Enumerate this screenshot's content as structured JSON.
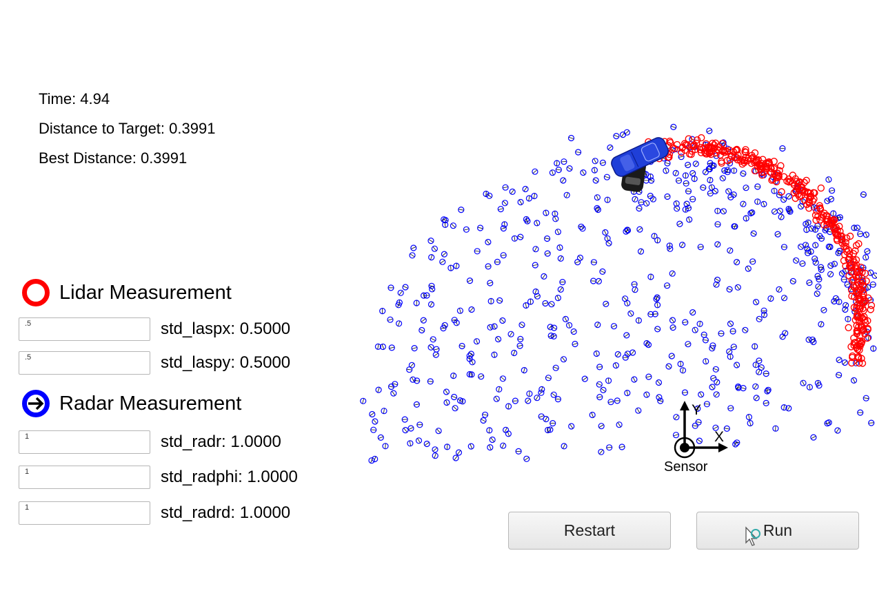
{
  "stats": {
    "time": "Time: 4.94",
    "distance": "Distance to Target: 0.3991",
    "best": "Best Distance: 0.3991"
  },
  "lidar": {
    "title": "Lidar Measurement",
    "color": "#ff0000",
    "params": [
      {
        "value": ".5",
        "label": "std_laspx: 0.5000"
      },
      {
        "value": ".5",
        "label": "std_laspy: 0.5000"
      }
    ]
  },
  "radar": {
    "title": "Radar Measurement",
    "color": "#0000ff",
    "params": [
      {
        "value": "1",
        "label": "std_radr: 1.0000"
      },
      {
        "value": "1",
        "label": "std_radphi: 1.0000"
      },
      {
        "value": "1",
        "label": "std_radrd: 1.0000"
      }
    ]
  },
  "sensor": {
    "label": "Sensor",
    "x_axis": "X",
    "y_axis": "Y"
  },
  "buttons": {
    "restart": "Restart",
    "run": "Run"
  },
  "colors": {
    "lidar": "#ff0000",
    "radar": "#0000ff",
    "target_car": "#1f3fd8",
    "ego_car": "#1a1a1a"
  }
}
